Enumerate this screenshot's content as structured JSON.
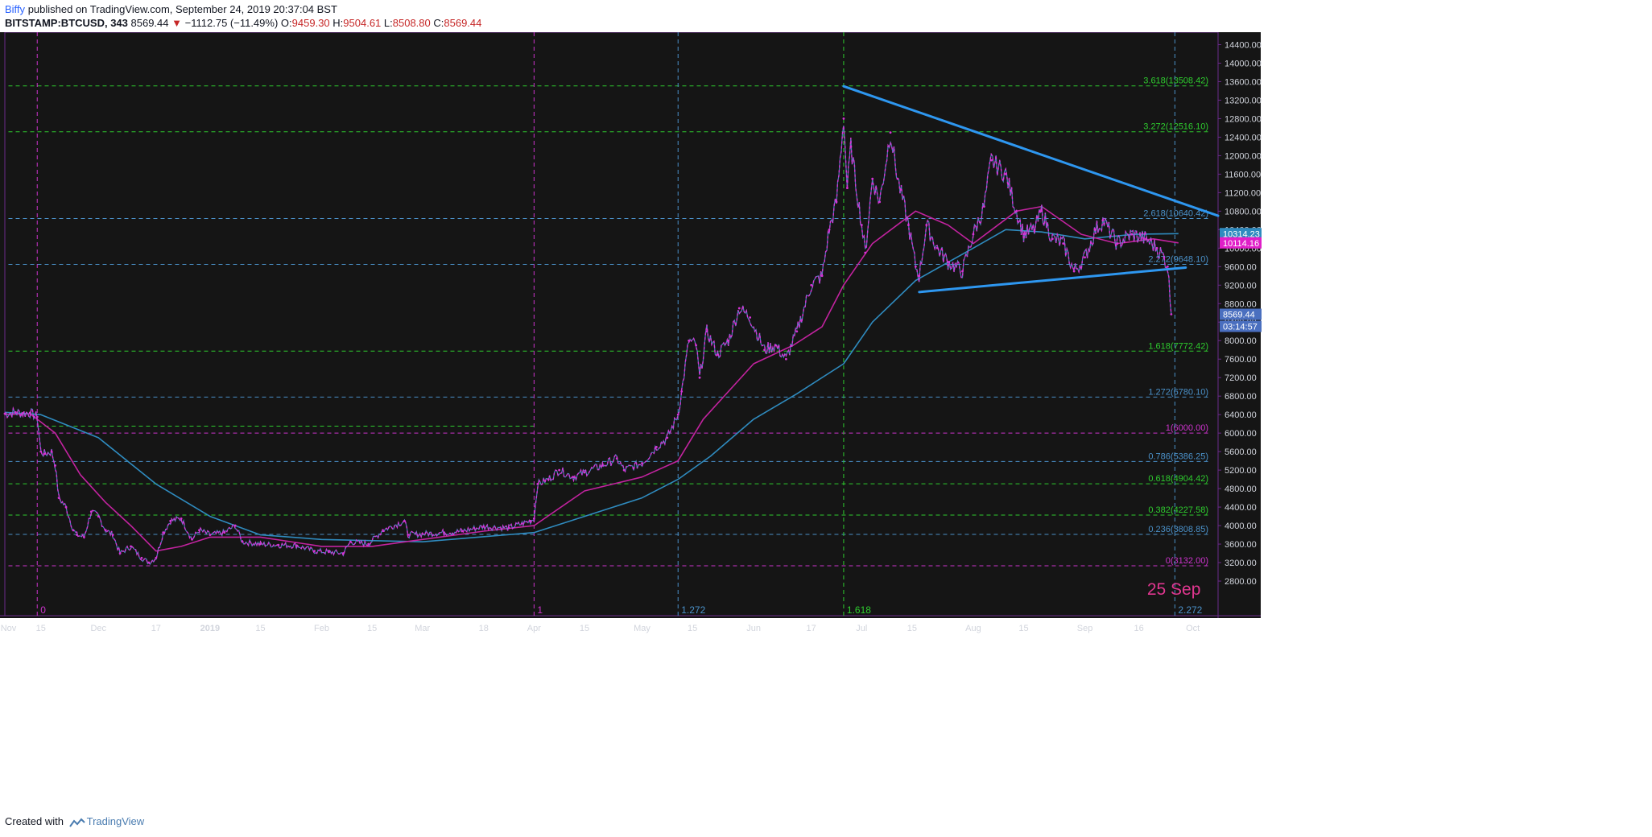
{
  "header": {
    "author": "Biffy",
    "published": "published on TradingView.com, September 24, 2019 20:37:04 BST",
    "symbol": "BITSTAMP:BTCUSD, 343",
    "last": "8569.44",
    "arrow": "▼",
    "change": "−1112.75 (−11.49%)",
    "o_label": "O:",
    "o": "9459.30",
    "h_label": "H:",
    "h": "9504.61",
    "l_label": "L:",
    "l": "8508.80",
    "c_label": "C:",
    "c": "8569.44"
  },
  "footer": {
    "created_with": "Created with",
    "brand": "TradingView"
  },
  "colors": {
    "background": "#151515",
    "price": "#d633d6",
    "price_alt": "#5b8fd9",
    "ma_fast": "#c2239f",
    "ma_slow": "#2f8bbf",
    "trendline": "#2e97f0",
    "fib_green": "#2ecc2e",
    "fib_blue": "#4a90c8",
    "fib_magenta": "#cc33cc",
    "axis_text": "#d1d4dc",
    "border": "#6a2a8a"
  },
  "chart_data": {
    "type": "line",
    "title": "",
    "xlabel": "",
    "ylabel": "",
    "ylim": [
      2400,
      14600
    ],
    "date_range": [
      "2018-11-05",
      "2019-10-08"
    ],
    "grid": false,
    "y_ticks": [
      "14400.00",
      "14000.00",
      "13600.00",
      "13200.00",
      "12800.00",
      "12400.00",
      "12000.00",
      "11600.00",
      "11200.00",
      "10800.00",
      "10400.00",
      "10000.00",
      "9600.00",
      "9200.00",
      "8800.00",
      "8400.00",
      "8000.00",
      "7600.00",
      "7200.00",
      "6800.00",
      "6400.00",
      "6000.00",
      "5600.00",
      "5200.00",
      "4800.00",
      "4400.00",
      "4000.00",
      "3600.00",
      "3200.00",
      "2800.00"
    ],
    "x_ticks": [
      {
        "date": "2018-11-06",
        "label": "Nov",
        "bold": false
      },
      {
        "date": "2018-11-15",
        "label": "15",
        "bold": false
      },
      {
        "date": "2018-12-01",
        "label": "Dec",
        "bold": false
      },
      {
        "date": "2018-12-17",
        "label": "17",
        "bold": false
      },
      {
        "date": "2019-01-01",
        "label": "2019",
        "bold": true
      },
      {
        "date": "2019-01-15",
        "label": "15",
        "bold": false
      },
      {
        "date": "2019-02-01",
        "label": "Feb",
        "bold": false
      },
      {
        "date": "2019-02-15",
        "label": "15",
        "bold": false
      },
      {
        "date": "2019-03-01",
        "label": "Mar",
        "bold": false
      },
      {
        "date": "2019-03-18",
        "label": "18",
        "bold": false
      },
      {
        "date": "2019-04-01",
        "label": "Apr",
        "bold": false
      },
      {
        "date": "2019-04-15",
        "label": "15",
        "bold": false
      },
      {
        "date": "2019-05-01",
        "label": "May",
        "bold": false
      },
      {
        "date": "2019-05-15",
        "label": "15",
        "bold": false
      },
      {
        "date": "2019-06-01",
        "label": "Jun",
        "bold": false
      },
      {
        "date": "2019-06-17",
        "label": "17",
        "bold": false
      },
      {
        "date": "2019-07-01",
        "label": "Jul",
        "bold": false
      },
      {
        "date": "2019-07-15",
        "label": "15",
        "bold": false
      },
      {
        "date": "2019-08-01",
        "label": "Aug",
        "bold": false
      },
      {
        "date": "2019-08-15",
        "label": "15",
        "bold": false
      },
      {
        "date": "2019-09-01",
        "label": "Sep",
        "bold": false
      },
      {
        "date": "2019-09-16",
        "label": "16",
        "bold": false
      },
      {
        "date": "2019-10-01",
        "label": "Oct",
        "bold": false
      }
    ],
    "fib_levels": [
      {
        "ratio": "3.618",
        "value": 13508.42,
        "label": "3.618(13508.42)",
        "color": "green",
        "start": "2018-11-06"
      },
      {
        "ratio": "3.272",
        "value": 12516.1,
        "label": "3.272(12516.10)",
        "color": "green",
        "start": "2018-11-06"
      },
      {
        "ratio": "2.618",
        "value": 10640.42,
        "label": "2.618(10640.42)",
        "color": "blue",
        "start": "2018-11-06"
      },
      {
        "ratio": "2.272",
        "value": 9648.1,
        "label": "2.272(9648.10)",
        "color": "blue",
        "start": "2018-11-06"
      },
      {
        "ratio": "1.618",
        "value": 7772.42,
        "label": "1.618(7772.42)",
        "color": "green",
        "start": "2018-11-06"
      },
      {
        "ratio": "1.272",
        "value": 6780.1,
        "label": "1.272(6780.10)",
        "color": "blue",
        "start": "2018-11-06"
      },
      {
        "ratio": "1",
        "value": 6000.0,
        "label": "1(6000.00)",
        "color": "magenta",
        "start": "2018-11-06"
      },
      {
        "ratio": "0.786",
        "value": 5386.25,
        "label": "0.786(5386.25)",
        "color": "blue",
        "start": "2018-11-06"
      },
      {
        "ratio": "0.618",
        "value": 4904.42,
        "label": "0.618(4904.42)",
        "color": "green",
        "start": "2018-11-06"
      },
      {
        "ratio": "0.382",
        "value": 4227.58,
        "label": "0.382(4227.58)",
        "color": "green",
        "start": "2018-11-06"
      },
      {
        "ratio": "0.236",
        "value": 3808.85,
        "label": "0.236(3808.85)",
        "color": "blue",
        "start": "2018-11-06"
      },
      {
        "ratio": "0",
        "value": 3132.0,
        "label": "0(3132.00)",
        "color": "magenta",
        "start": "2018-11-06"
      }
    ],
    "extra_hline": {
      "value": 6150,
      "color": "green",
      "start": "2018-11-06",
      "end": "2019-04-01"
    },
    "vertical_lines": [
      {
        "date": "2018-11-14",
        "label": "0",
        "color": "magenta"
      },
      {
        "date": "2019-04-01",
        "label": "1",
        "color": "magenta"
      },
      {
        "date": "2019-05-11",
        "label": "1.272",
        "color": "blue"
      },
      {
        "date": "2019-06-26",
        "label": "1.618",
        "color": "green"
      },
      {
        "date": "2019-09-26",
        "label": "2.272",
        "color": "blue"
      }
    ],
    "date_annotation": {
      "date": "2019-09-25",
      "text": "25 Sep"
    },
    "trendlines": [
      {
        "from": {
          "date": "2019-06-26",
          "value": 13500
        },
        "to": {
          "date": "2019-10-08",
          "value": 10700
        }
      },
      {
        "from": {
          "date": "2019-07-17",
          "value": 9050
        },
        "to": {
          "date": "2019-09-29",
          "value": 9580
        }
      }
    ],
    "price_series": {
      "name": "",
      "points": [
        [
          "2018-11-05",
          6420
        ],
        [
          "2018-11-08",
          6450
        ],
        [
          "2018-11-10",
          6430
        ],
        [
          "2018-11-12",
          6440
        ],
        [
          "2018-11-14",
          6350
        ],
        [
          "2018-11-15",
          5600
        ],
        [
          "2018-11-16",
          5550
        ],
        [
          "2018-11-18",
          5600
        ],
        [
          "2018-11-19",
          5300
        ],
        [
          "2018-11-20",
          4600
        ],
        [
          "2018-11-22",
          4400
        ],
        [
          "2018-11-24",
          3900
        ],
        [
          "2018-11-25",
          3800
        ],
        [
          "2018-11-27",
          3750
        ],
        [
          "2018-11-29",
          4300
        ],
        [
          "2018-12-01",
          4200
        ],
        [
          "2018-12-03",
          3900
        ],
        [
          "2018-12-05",
          3800
        ],
        [
          "2018-12-07",
          3400
        ],
        [
          "2018-12-10",
          3550
        ],
        [
          "2018-12-13",
          3300
        ],
        [
          "2018-12-15",
          3200
        ],
        [
          "2018-12-17",
          3300
        ],
        [
          "2018-12-19",
          3850
        ],
        [
          "2018-12-21",
          4100
        ],
        [
          "2018-12-24",
          4150
        ],
        [
          "2018-12-27",
          3700
        ],
        [
          "2018-12-29",
          3900
        ],
        [
          "2019-01-01",
          3800
        ],
        [
          "2019-01-05",
          3850
        ],
        [
          "2019-01-08",
          4000
        ],
        [
          "2019-01-10",
          3650
        ],
        [
          "2019-01-15",
          3600
        ],
        [
          "2019-01-20",
          3580
        ],
        [
          "2019-01-25",
          3570
        ],
        [
          "2019-01-30",
          3450
        ],
        [
          "2019-02-03",
          3430
        ],
        [
          "2019-02-07",
          3400
        ],
        [
          "2019-02-09",
          3650
        ],
        [
          "2019-02-14",
          3600
        ],
        [
          "2019-02-18",
          3900
        ],
        [
          "2019-02-24",
          4100
        ],
        [
          "2019-02-25",
          3800
        ],
        [
          "2019-03-01",
          3820
        ],
        [
          "2019-03-07",
          3850
        ],
        [
          "2019-03-12",
          3880
        ],
        [
          "2019-03-18",
          3980
        ],
        [
          "2019-03-25",
          3950
        ],
        [
          "2019-03-31",
          4100
        ],
        [
          "2019-04-01",
          4150
        ],
        [
          "2019-04-02",
          4900
        ],
        [
          "2019-04-05",
          5000
        ],
        [
          "2019-04-08",
          5200
        ],
        [
          "2019-04-12",
          5050
        ],
        [
          "2019-04-15",
          5150
        ],
        [
          "2019-04-20",
          5300
        ],
        [
          "2019-04-24",
          5450
        ],
        [
          "2019-04-26",
          5200
        ],
        [
          "2019-05-01",
          5350
        ],
        [
          "2019-05-05",
          5700
        ],
        [
          "2019-05-08",
          5900
        ],
        [
          "2019-05-11",
          6400
        ],
        [
          "2019-05-12",
          6900
        ],
        [
          "2019-05-14",
          8000
        ],
        [
          "2019-05-16",
          7900
        ],
        [
          "2019-05-17",
          7200
        ],
        [
          "2019-05-19",
          8200
        ],
        [
          "2019-05-22",
          7700
        ],
        [
          "2019-05-25",
          8000
        ],
        [
          "2019-05-28",
          8700
        ],
        [
          "2019-05-31",
          8500
        ],
        [
          "2019-06-04",
          7800
        ],
        [
          "2019-06-07",
          7900
        ],
        [
          "2019-06-10",
          7600
        ],
        [
          "2019-06-13",
          8200
        ],
        [
          "2019-06-17",
          9200
        ],
        [
          "2019-06-20",
          9400
        ],
        [
          "2019-06-22",
          10400
        ],
        [
          "2019-06-24",
          11000
        ],
        [
          "2019-06-26",
          12800
        ],
        [
          "2019-06-27",
          11300
        ],
        [
          "2019-06-28",
          12200
        ],
        [
          "2019-07-01",
          10500
        ],
        [
          "2019-07-02",
          9900
        ],
        [
          "2019-07-04",
          11500
        ],
        [
          "2019-07-06",
          11000
        ],
        [
          "2019-07-09",
          12500
        ],
        [
          "2019-07-11",
          11500
        ],
        [
          "2019-07-14",
          10500
        ],
        [
          "2019-07-16",
          9600
        ],
        [
          "2019-07-17",
          9400
        ],
        [
          "2019-07-19",
          10500
        ],
        [
          "2019-07-22",
          10000
        ],
        [
          "2019-07-25",
          9700
        ],
        [
          "2019-07-29",
          9500
        ],
        [
          "2019-08-01",
          10300
        ],
        [
          "2019-08-04",
          10900
        ],
        [
          "2019-08-06",
          11900
        ],
        [
          "2019-08-10",
          11600
        ],
        [
          "2019-08-13",
          10800
        ],
        [
          "2019-08-15",
          10300
        ],
        [
          "2019-08-18",
          10400
        ],
        [
          "2019-08-20",
          10800
        ],
        [
          "2019-08-23",
          10200
        ],
        [
          "2019-08-26",
          10100
        ],
        [
          "2019-08-29",
          9500
        ],
        [
          "2019-09-01",
          9800
        ],
        [
          "2019-09-04",
          10400
        ],
        [
          "2019-09-06",
          10600
        ],
        [
          "2019-09-10",
          10100
        ],
        [
          "2019-09-14",
          10300
        ],
        [
          "2019-09-18",
          10200
        ],
        [
          "2019-09-21",
          10000
        ],
        [
          "2019-09-23",
          9800
        ],
        [
          "2019-09-24",
          9600
        ],
        [
          "2019-09-25",
          8569.44
        ]
      ]
    },
    "ma_fast": {
      "name": "",
      "points": [
        [
          "2018-11-05",
          6400
        ],
        [
          "2018-11-12",
          6420
        ],
        [
          "2018-11-19",
          6000
        ],
        [
          "2018-11-26",
          5100
        ],
        [
          "2018-12-03",
          4500
        ],
        [
          "2018-12-10",
          4000
        ],
        [
          "2018-12-17",
          3450
        ],
        [
          "2018-12-24",
          3550
        ],
        [
          "2019-01-01",
          3750
        ],
        [
          "2019-01-15",
          3750
        ],
        [
          "2019-02-01",
          3550
        ],
        [
          "2019-02-15",
          3550
        ],
        [
          "2019-03-01",
          3700
        ],
        [
          "2019-03-18",
          3880
        ],
        [
          "2019-04-01",
          4000
        ],
        [
          "2019-04-15",
          4750
        ],
        [
          "2019-05-01",
          5050
        ],
        [
          "2019-05-11",
          5400
        ],
        [
          "2019-05-18",
          6300
        ],
        [
          "2019-06-01",
          7500
        ],
        [
          "2019-06-12",
          7900
        ],
        [
          "2019-06-20",
          8300
        ],
        [
          "2019-06-26",
          9200
        ],
        [
          "2019-07-04",
          10100
        ],
        [
          "2019-07-16",
          10800
        ],
        [
          "2019-07-25",
          10500
        ],
        [
          "2019-08-01",
          10100
        ],
        [
          "2019-08-13",
          10800
        ],
        [
          "2019-08-20",
          10900
        ],
        [
          "2019-08-31",
          10300
        ],
        [
          "2019-09-10",
          10100
        ],
        [
          "2019-09-20",
          10200
        ],
        [
          "2019-09-27",
          10114
        ]
      ]
    },
    "ma_slow": {
      "name": "",
      "points": [
        [
          "2018-11-05",
          6450
        ],
        [
          "2018-11-15",
          6400
        ],
        [
          "2018-12-01",
          5900
        ],
        [
          "2018-12-17",
          4900
        ],
        [
          "2019-01-01",
          4200
        ],
        [
          "2019-01-15",
          3800
        ],
        [
          "2019-02-01",
          3700
        ],
        [
          "2019-03-01",
          3650
        ],
        [
          "2019-04-01",
          3850
        ],
        [
          "2019-04-15",
          4200
        ],
        [
          "2019-05-01",
          4600
        ],
        [
          "2019-05-11",
          5000
        ],
        [
          "2019-05-20",
          5500
        ],
        [
          "2019-06-01",
          6300
        ],
        [
          "2019-06-13",
          6850
        ],
        [
          "2019-06-26",
          7500
        ],
        [
          "2019-07-04",
          8400
        ],
        [
          "2019-07-16",
          9300
        ],
        [
          "2019-08-01",
          10000
        ],
        [
          "2019-08-10",
          10400
        ],
        [
          "2019-08-20",
          10350
        ],
        [
          "2019-09-01",
          10200
        ],
        [
          "2019-09-15",
          10300
        ],
        [
          "2019-09-27",
          10314
        ]
      ]
    },
    "price_tags": [
      {
        "value": 10314.23,
        "text": "10314.23",
        "color": "#2f8bbf"
      },
      {
        "value": 10114.16,
        "text": "10114.16",
        "color": "#e01fc8"
      },
      {
        "value": 8569.44,
        "text": "8569.44",
        "color": "#4a6fbf"
      }
    ],
    "countdown": "03:14:57"
  }
}
